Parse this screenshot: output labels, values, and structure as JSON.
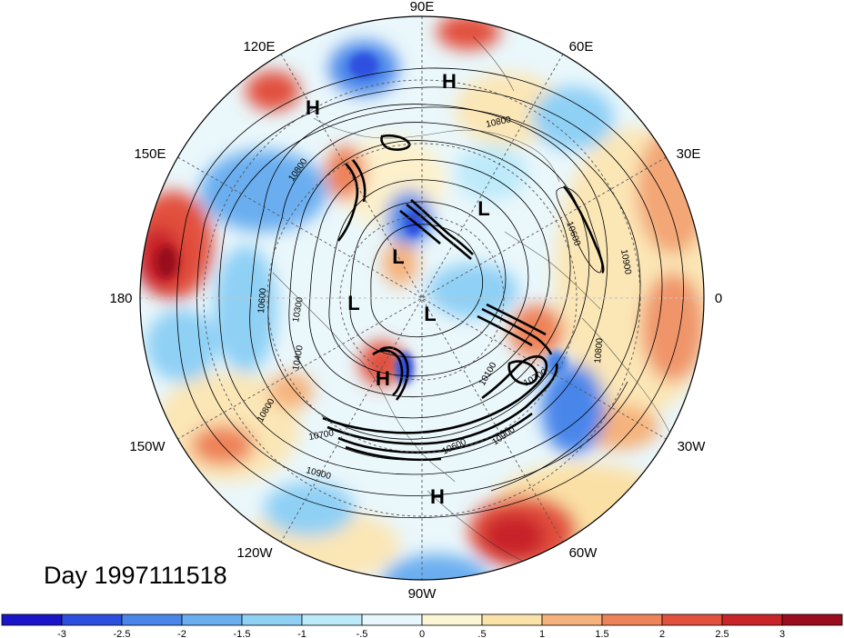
{
  "title": "Day 1997111518",
  "longitude_labels": {
    "lon_90E": "90E",
    "lon_60E": "60E",
    "lon_30E": "30E",
    "lon_0": "0",
    "lon_30W": "30W",
    "lon_60W": "60W",
    "lon_90W": "90W",
    "lon_120W": "120W",
    "lon_150W": "150W",
    "lon_180": "180",
    "lon_150E": "150E",
    "lon_120E": "120E"
  },
  "pressure_centers": [
    {
      "label": "H"
    },
    {
      "label": "H"
    },
    {
      "label": "H"
    },
    {
      "label": "H"
    },
    {
      "label": "L"
    },
    {
      "label": "L"
    },
    {
      "label": "L"
    },
    {
      "label": "L"
    }
  ],
  "contour_labels": [
    "10800",
    "10600",
    "10300",
    "10400",
    "10800",
    "10700",
    "10900",
    "10800",
    "10600",
    "10900",
    "10700",
    "10800",
    "10100",
    "10600",
    "10900"
  ],
  "colorbar": {
    "labels": [
      "-3",
      "-2.5",
      "-2",
      "-1.5",
      "-1",
      "-.5",
      "0",
      ".5",
      "1",
      "1.5",
      "2",
      "2.5",
      "3"
    ],
    "colors": [
      "#1a14c8",
      "#2d4fe0",
      "#4a86ea",
      "#6aaef0",
      "#8fd0f5",
      "#bdeafa",
      "#e6f8fd",
      "#fdf6d6",
      "#fbe2a8",
      "#f6b27c",
      "#ee8258",
      "#e2503e",
      "#c8242a",
      "#9a0d1e"
    ]
  }
}
